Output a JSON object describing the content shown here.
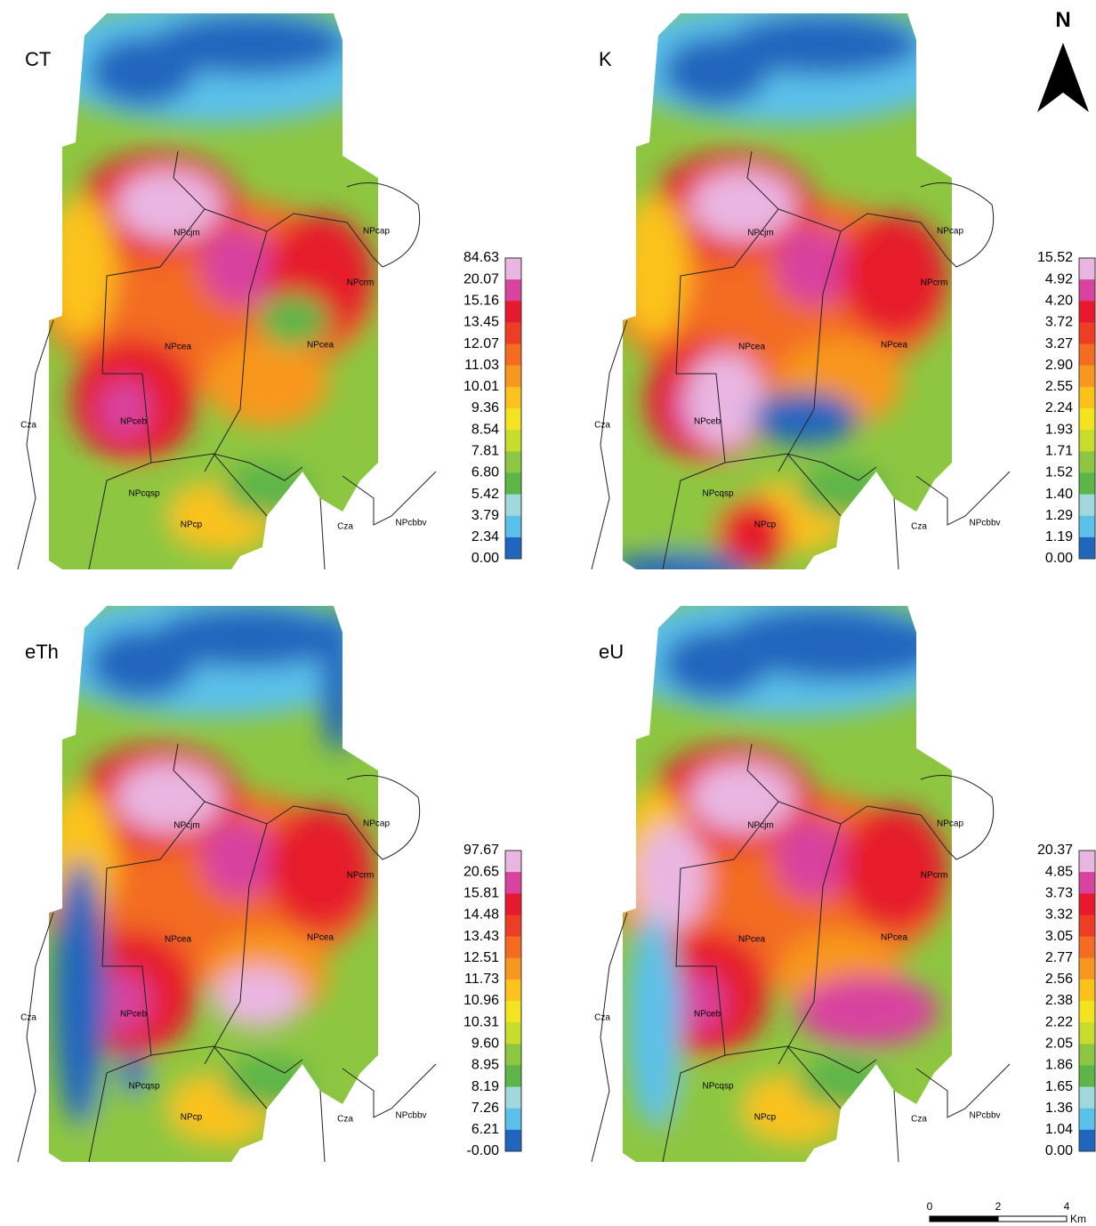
{
  "north_label": "N",
  "scale_bar": {
    "labels": [
      "0",
      "2",
      "4"
    ],
    "unit": "Km"
  },
  "legend_colors": [
    "#e9b6e2",
    "#d8439f",
    "#e61a2c",
    "#ee3d25",
    "#f36c22",
    "#f8971f",
    "#fbc21b",
    "#f3e41f",
    "#c8dc2b",
    "#8dc641",
    "#5db548",
    "#a1d8dc",
    "#5cc1ea",
    "#2066be"
  ],
  "panels": [
    {
      "title": "CT",
      "legend": [
        "84.63",
        "20.07",
        "15.16",
        "13.45",
        "12.07",
        "11.03",
        "10.01",
        "9.36",
        "8.54",
        "7.81",
        "6.80",
        "5.42",
        "3.79",
        "2.34",
        "0.00"
      ],
      "units": [
        "NPcjm",
        "NPcap",
        "NPcrm",
        "NPcea",
        "NPcea",
        "Cza",
        "NPceb",
        "NPcqsp",
        "NPcp",
        "Cza",
        "NPcbbv"
      ]
    },
    {
      "title": "K",
      "legend": [
        "15.52",
        "4.92",
        "4.20",
        "3.72",
        "3.27",
        "2.90",
        "2.55",
        "2.24",
        "1.93",
        "1.71",
        "1.52",
        "1.40",
        "1.29",
        "1.19",
        "0.00"
      ],
      "units": [
        "NPcjm",
        "NPcap",
        "NPcrm",
        "NPcea",
        "NPcea",
        "Cza",
        "NPceb",
        "NPcqsp",
        "NPcp",
        "Cza",
        "NPcbbv"
      ]
    },
    {
      "title": "eTh",
      "legend": [
        "97.67",
        "20.65",
        "15.81",
        "14.48",
        "13.43",
        "12.51",
        "11.73",
        "10.96",
        "10.31",
        "9.60",
        "8.95",
        "8.19",
        "7.26",
        "6.21",
        "-0.00"
      ],
      "units": [
        "NPcjm",
        "NPcap",
        "NPcrm",
        "NPcea",
        "NPcea",
        "Cza",
        "NPceb",
        "NPcqsp",
        "NPcp",
        "Cza",
        "NPcbbv"
      ]
    },
    {
      "title": "eU",
      "legend": [
        "20.37",
        "4.85",
        "3.73",
        "3.32",
        "3.05",
        "2.77",
        "2.56",
        "2.38",
        "2.22",
        "2.05",
        "1.86",
        "1.65",
        "1.36",
        "1.04",
        "0.00"
      ],
      "units": [
        "NPcjm",
        "NPcap",
        "NPcrm",
        "NPcea",
        "NPcea",
        "Cza",
        "NPceb",
        "NPcqsp",
        "NPcp",
        "Cza",
        "NPcbbv"
      ]
    }
  ]
}
